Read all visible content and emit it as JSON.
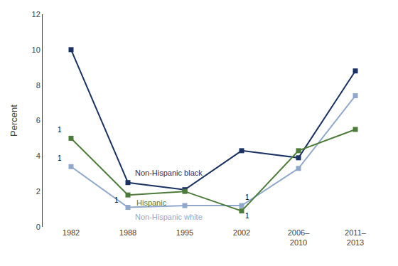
{
  "chart_data": {
    "type": "line",
    "categories": [
      "1982",
      "1988",
      "1995",
      "2002",
      "2006–\n2010",
      "2011–\n2013"
    ],
    "series": [
      {
        "name": "Non-Hispanic black",
        "values": [
          10.0,
          2.5,
          2.1,
          4.3,
          3.9,
          8.8
        ],
        "color": "#1a3263",
        "marker": "square",
        "line_style": "solid"
      },
      {
        "name": "Non-Hispanic white",
        "values": [
          3.4,
          1.1,
          1.2,
          1.2,
          3.3,
          7.4
        ],
        "color": "#8fa8cc",
        "marker": "square",
        "line_style": "solid"
      },
      {
        "name": "Hispanic",
        "values": [
          5.0,
          1.8,
          2.0,
          0.9,
          4.3,
          5.5
        ],
        "color": "#4d7c3a",
        "marker": "square",
        "line_style": "solid"
      }
    ],
    "ylabel": "Percent",
    "ylim": [
      0,
      12
    ],
    "yticks": [
      0,
      2,
      4,
      6,
      8,
      10,
      12
    ],
    "grid": false,
    "annotations": [
      {
        "text": "1",
        "series": "Hispanic",
        "category": "1982"
      },
      {
        "text": "1",
        "series": "Non-Hispanic white",
        "category": "1982"
      },
      {
        "text": "1",
        "series": "Non-Hispanic white",
        "category": "1988"
      },
      {
        "text": "1",
        "series": "Non-Hispanic white",
        "category": "2002"
      },
      {
        "text": "1",
        "series": "Hispanic",
        "category": "2002"
      }
    ]
  }
}
